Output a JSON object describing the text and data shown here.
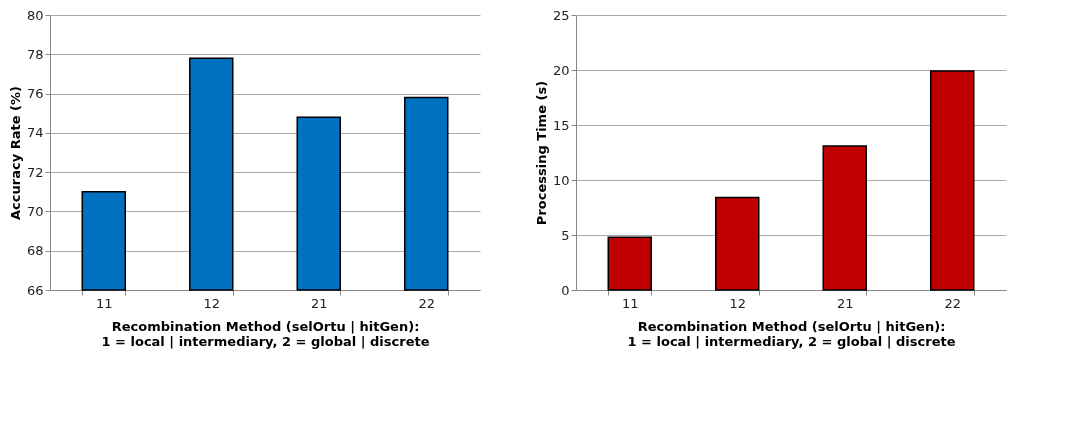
{
  "chart_data": [
    {
      "type": "bar",
      "xlabel": "Recombination Method (selOrtu | hitGen):\n1 = local | intermediary, 2 = global | discrete",
      "ylabel": "Accuracy Rate (%)",
      "categories": [
        "11",
        "12",
        "21",
        "22"
      ],
      "values": [
        71.0,
        77.8,
        74.8,
        75.8
      ],
      "color": "#0070c0",
      "ylim": [
        66,
        80
      ],
      "yticks": [
        66,
        68,
        70,
        72,
        74,
        76,
        78,
        80
      ],
      "grid": "y"
    },
    {
      "type": "bar",
      "xlabel": "Recombination Method (selOrtu | hitGen):\n1 = local | intermediary, 2 = global | discrete",
      "ylabel": "Processing Time (s)",
      "categories": [
        "11",
        "12",
        "21",
        "22"
      ],
      "values": [
        4.8,
        8.4,
        13.1,
        19.9
      ],
      "color": "#c00000",
      "ylim": [
        0,
        25
      ],
      "yticks": [
        0,
        5,
        10,
        15,
        20,
        25
      ],
      "grid": "y"
    }
  ]
}
